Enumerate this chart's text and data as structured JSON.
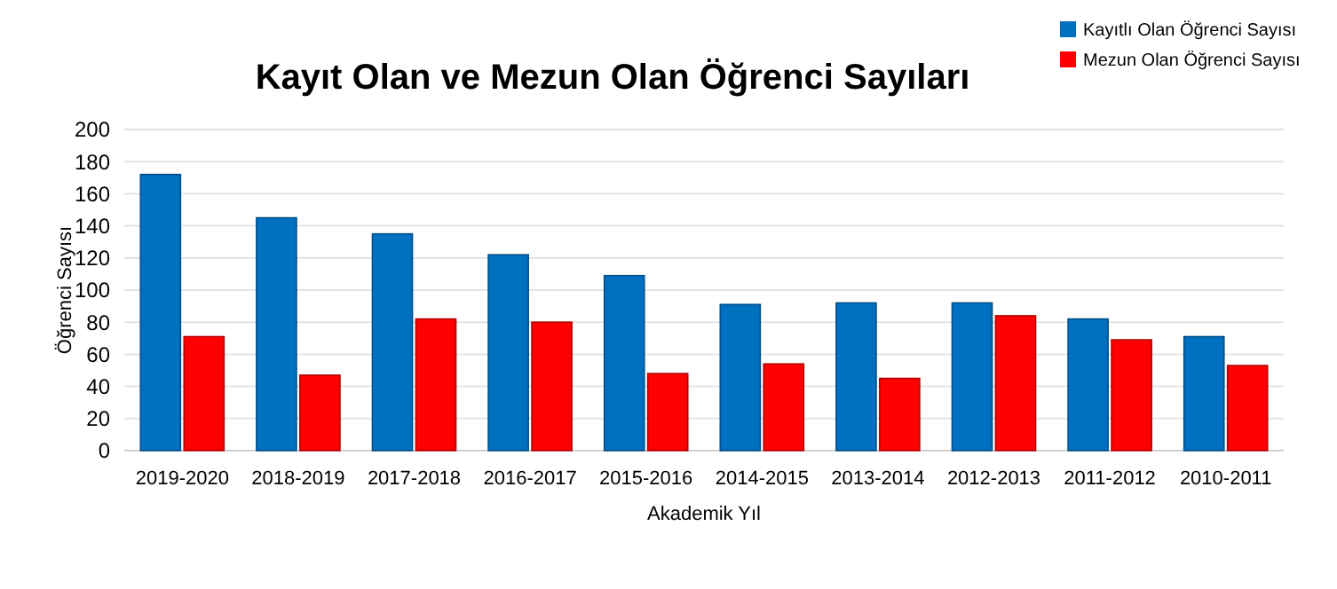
{
  "chart_data": {
    "type": "bar",
    "title": "Kayıt Olan ve Mezun Olan Öğrenci Sayıları",
    "xlabel": "Akademik Yıl",
    "ylabel": "Öğrenci Sayısı",
    "categories": [
      "2019-2020",
      "2018-2019",
      "2017-2018",
      "2016-2017",
      "2015-2016",
      "2014-2015",
      "2013-2014",
      "2012-2013",
      "2011-2012",
      "2010-2011"
    ],
    "series": [
      {
        "name": "Kayıtlı Olan Öğrenci Sayısı",
        "color": "#0070c0",
        "values": [
          172,
          145,
          135,
          122,
          109,
          91,
          92,
          92,
          82,
          71
        ]
      },
      {
        "name": "Mezun Olan Öğrenci Sayısı",
        "color": "#ff0000",
        "values": [
          71,
          47,
          82,
          80,
          48,
          54,
          45,
          84,
          69,
          53
        ]
      }
    ],
    "ylim": [
      0,
      200
    ],
    "yticks": [
      0,
      20,
      40,
      60,
      80,
      100,
      120,
      140,
      160,
      180,
      200
    ],
    "grid": "y",
    "legend": "top right"
  }
}
